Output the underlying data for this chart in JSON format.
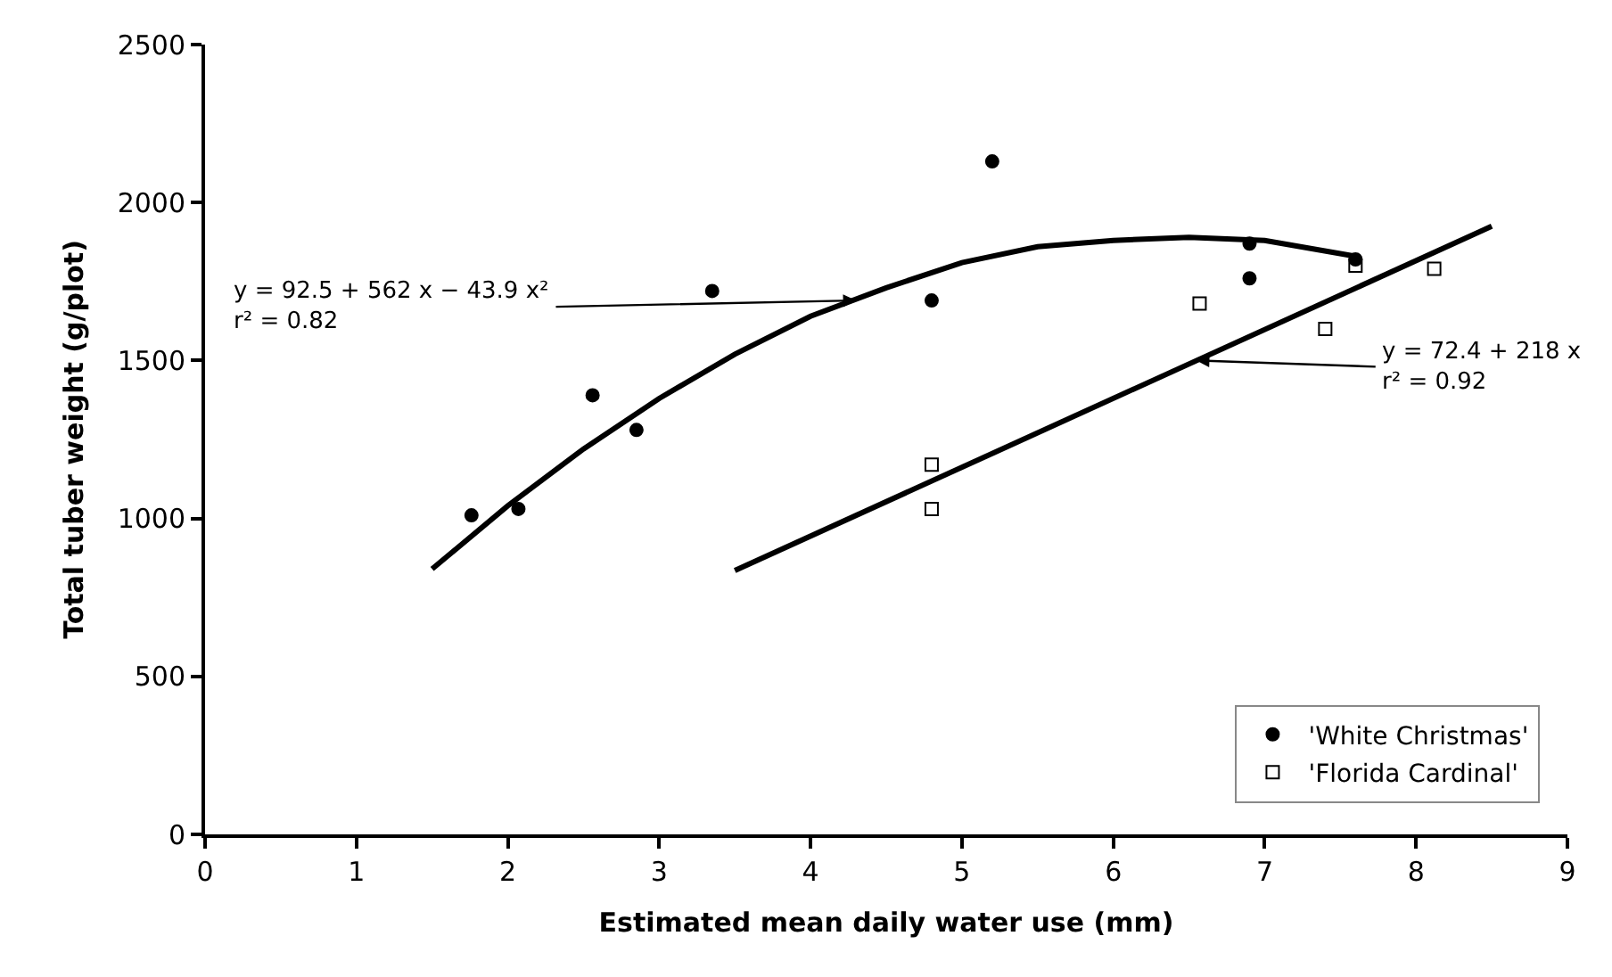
{
  "chart_data": {
    "type": "scatter",
    "xlabel": "Estimated mean daily water use (mm)",
    "ylabel": "Total tuber weight (g/plot)",
    "xlim": [
      0,
      9
    ],
    "xticks": [
      0,
      1,
      2,
      3,
      4,
      5,
      6,
      7,
      8,
      9
    ],
    "ylim": [
      0,
      2500
    ],
    "yticks": [
      0,
      500,
      1000,
      1500,
      2000,
      2500
    ],
    "legend": "bottom right",
    "series": [
      {
        "name": "'White Christmas'",
        "marker": "circle",
        "color": "#000000",
        "x": [
          1.76,
          2.07,
          2.56,
          2.85,
          3.35,
          4.8,
          5.2,
          6.9,
          6.9,
          7.6
        ],
        "values": [
          1010,
          1030,
          1390,
          1280,
          1720,
          1690,
          2130,
          1870,
          1760,
          1820
        ]
      },
      {
        "name": "'Florida Cardinal'",
        "marker": "square",
        "color": "#000000",
        "x": [
          4.8,
          4.8,
          6.57,
          7.4,
          7.6,
          8.12
        ],
        "values": [
          1170,
          1030,
          1680,
          1600,
          1800,
          1790
        ]
      },
      {
        "type": "line",
        "marker": "none",
        "color": "#000000",
        "x": [
          1.5,
          2,
          2.5,
          3,
          3.5,
          4,
          4.5,
          5,
          5.5,
          6,
          6.5,
          7,
          7.6
        ],
        "values": [
          840,
          1040,
          1220,
          1380,
          1520,
          1640,
          1730,
          1810,
          1860,
          1880,
          1890,
          1880,
          1830
        ]
      },
      {
        "type": "line",
        "marker": "none",
        "color": "#000000",
        "x": [
          3.5,
          8.5
        ],
        "values": [
          835,
          1925
        ]
      }
    ],
    "annotations": [
      {
        "text": "y = 92.5 + 562 x − 43.9 x²\nr² = 0.82",
        "x": 4.3,
        "y": 1690
      },
      {
        "text": "y = 72.4 + 218 x\nr² = 0.92",
        "x": 6.55,
        "y": 1500
      }
    ]
  }
}
